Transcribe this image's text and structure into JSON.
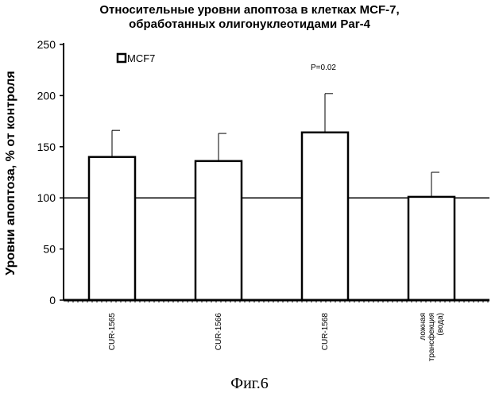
{
  "chart_data": {
    "type": "bar",
    "title_line1": "Относительные уровни апоптоза в клетках MCF-7,",
    "title_line2": "обработанных олигонуклеотидами Par-4",
    "ylabel": "Уровни апоптоза, % от контроля",
    "xlabel": "",
    "ylim": [
      0,
      250
    ],
    "yticks": [
      "0",
      "50",
      "100",
      "150",
      "200",
      "250"
    ],
    "ytick_values": [
      0,
      50,
      100,
      150,
      200,
      250
    ],
    "categories": [
      "CUR-1565",
      "CUR-1566",
      "CUR-1568",
      "ложная трансфекция (вода)"
    ],
    "category_lines": [
      [
        "CUR-1565"
      ],
      [
        "CUR-1566"
      ],
      [
        "CUR-1568"
      ],
      [
        "ложная",
        "трансфекция",
        "(вода)"
      ]
    ],
    "series": [
      {
        "name": "MCF7",
        "values": [
          140,
          136,
          164,
          101
        ],
        "error_upper": [
          166,
          163,
          202,
          125
        ]
      }
    ],
    "reference_line": 100,
    "annotation": "P=0.02",
    "annotation_category_index": 2,
    "legend_position": "top-left",
    "bar_fill": "#ffffff",
    "bar_stroke": "#000000"
  },
  "figure_caption": "Фиг.6"
}
